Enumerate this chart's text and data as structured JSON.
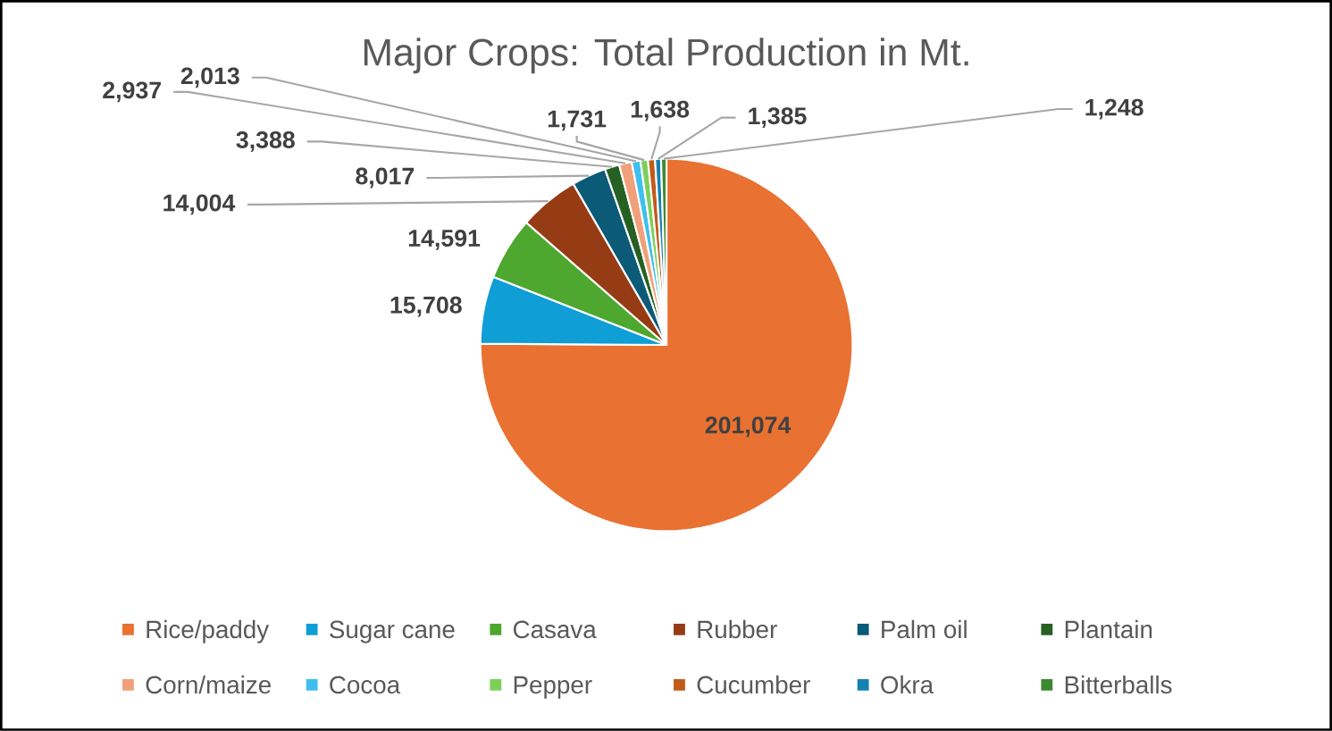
{
  "chart_data": {
    "type": "pie",
    "title": "Major Crops: Total Production in Mt.",
    "categories": [
      "Rice/paddy",
      "Sugar cane",
      "Casava",
      "Rubber",
      "Palm oil",
      "Plantain",
      "Corn/maize",
      "Cocoa",
      "Pepper",
      "Cucumber",
      "Okra",
      "Bitterballs"
    ],
    "values": [
      201074,
      15708,
      14591,
      14004,
      8017,
      3388,
      2937,
      2013,
      1731,
      1638,
      1385,
      1248
    ],
    "colors": [
      "#e97132",
      "#0f9ed5",
      "#4ea72e",
      "#963c14",
      "#0b5a78",
      "#266022",
      "#f0a07a",
      "#3fbfee",
      "#7cd05a",
      "#c25a1a",
      "#1482b0",
      "#3a8a30"
    ],
    "value_labels": [
      "201,074",
      "15,708",
      "14,591",
      "14,004",
      "8,017",
      "3,388",
      "2,937",
      "2,013",
      "1,731",
      "1,638",
      "1,385",
      "1,248"
    ],
    "legend": "bottom"
  }
}
